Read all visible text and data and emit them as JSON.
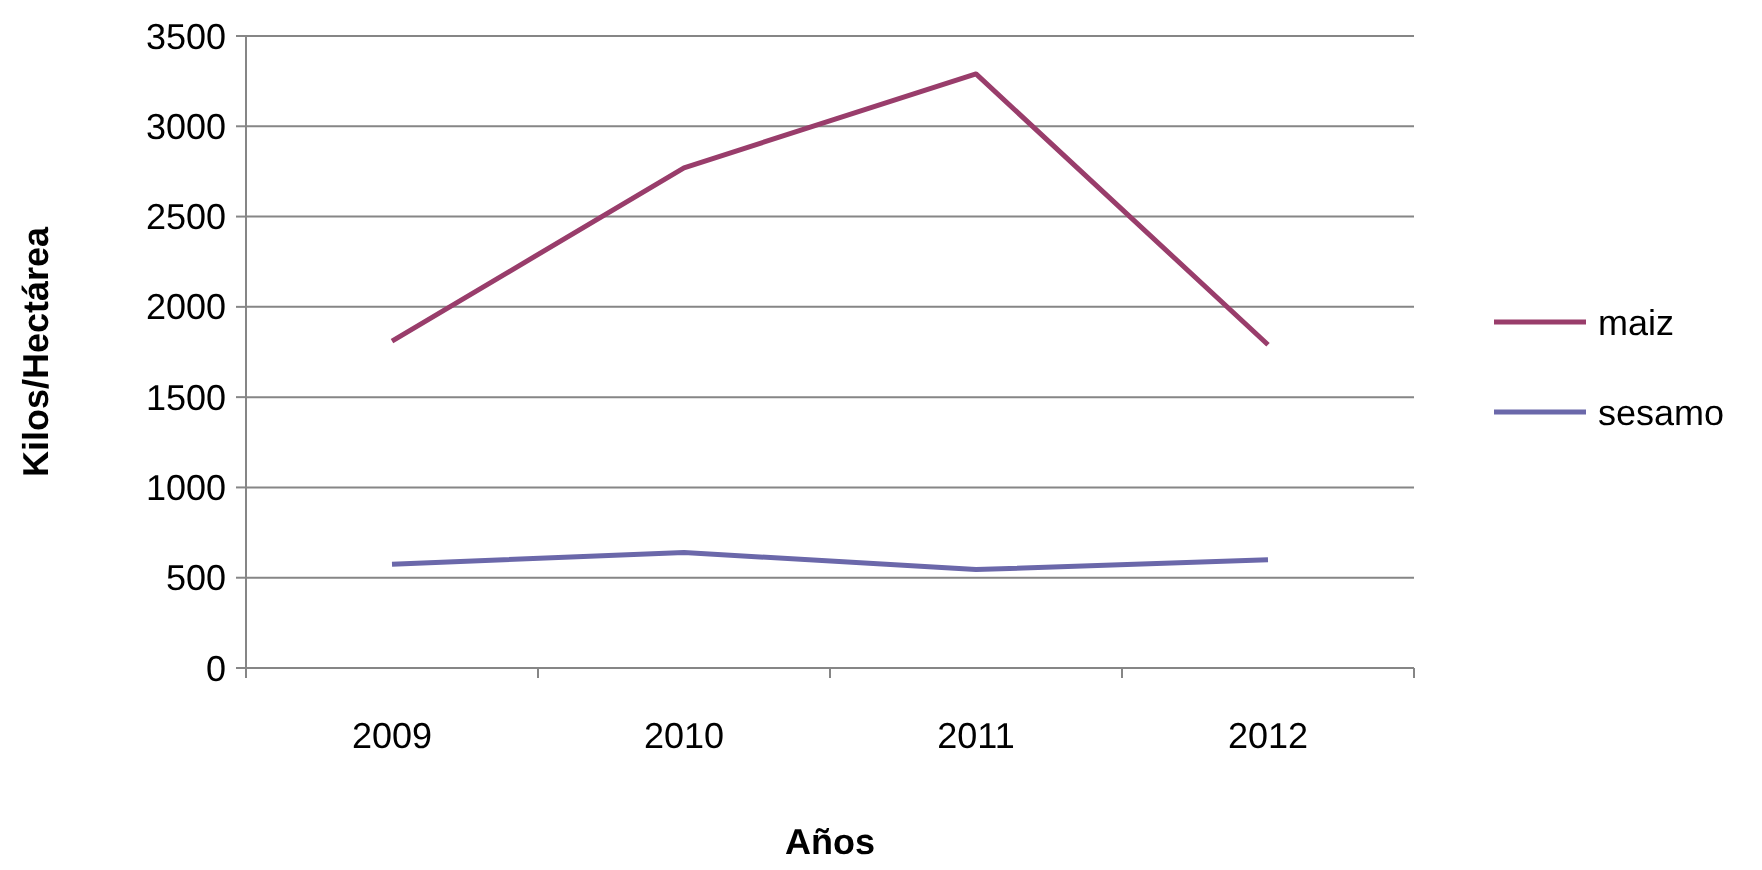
{
  "chart_data": {
    "type": "line",
    "xlabel": "Años",
    "ylabel": "Kilos/Hectárea",
    "categories": [
      "2009",
      "2010",
      "2011",
      "2012"
    ],
    "series": [
      {
        "name": "maiz",
        "color": "#993d6b",
        "values": [
          1810,
          2770,
          3290,
          1790
        ]
      },
      {
        "name": "sesamo",
        "color": "#6b68aa",
        "values": [
          575,
          640,
          545,
          600
        ]
      }
    ],
    "ylim": [
      0,
      3500
    ],
    "yticks": [
      0,
      500,
      1000,
      1500,
      2000,
      2500,
      3000,
      3500
    ],
    "grid": "y",
    "legend": "right",
    "marker": "none"
  }
}
